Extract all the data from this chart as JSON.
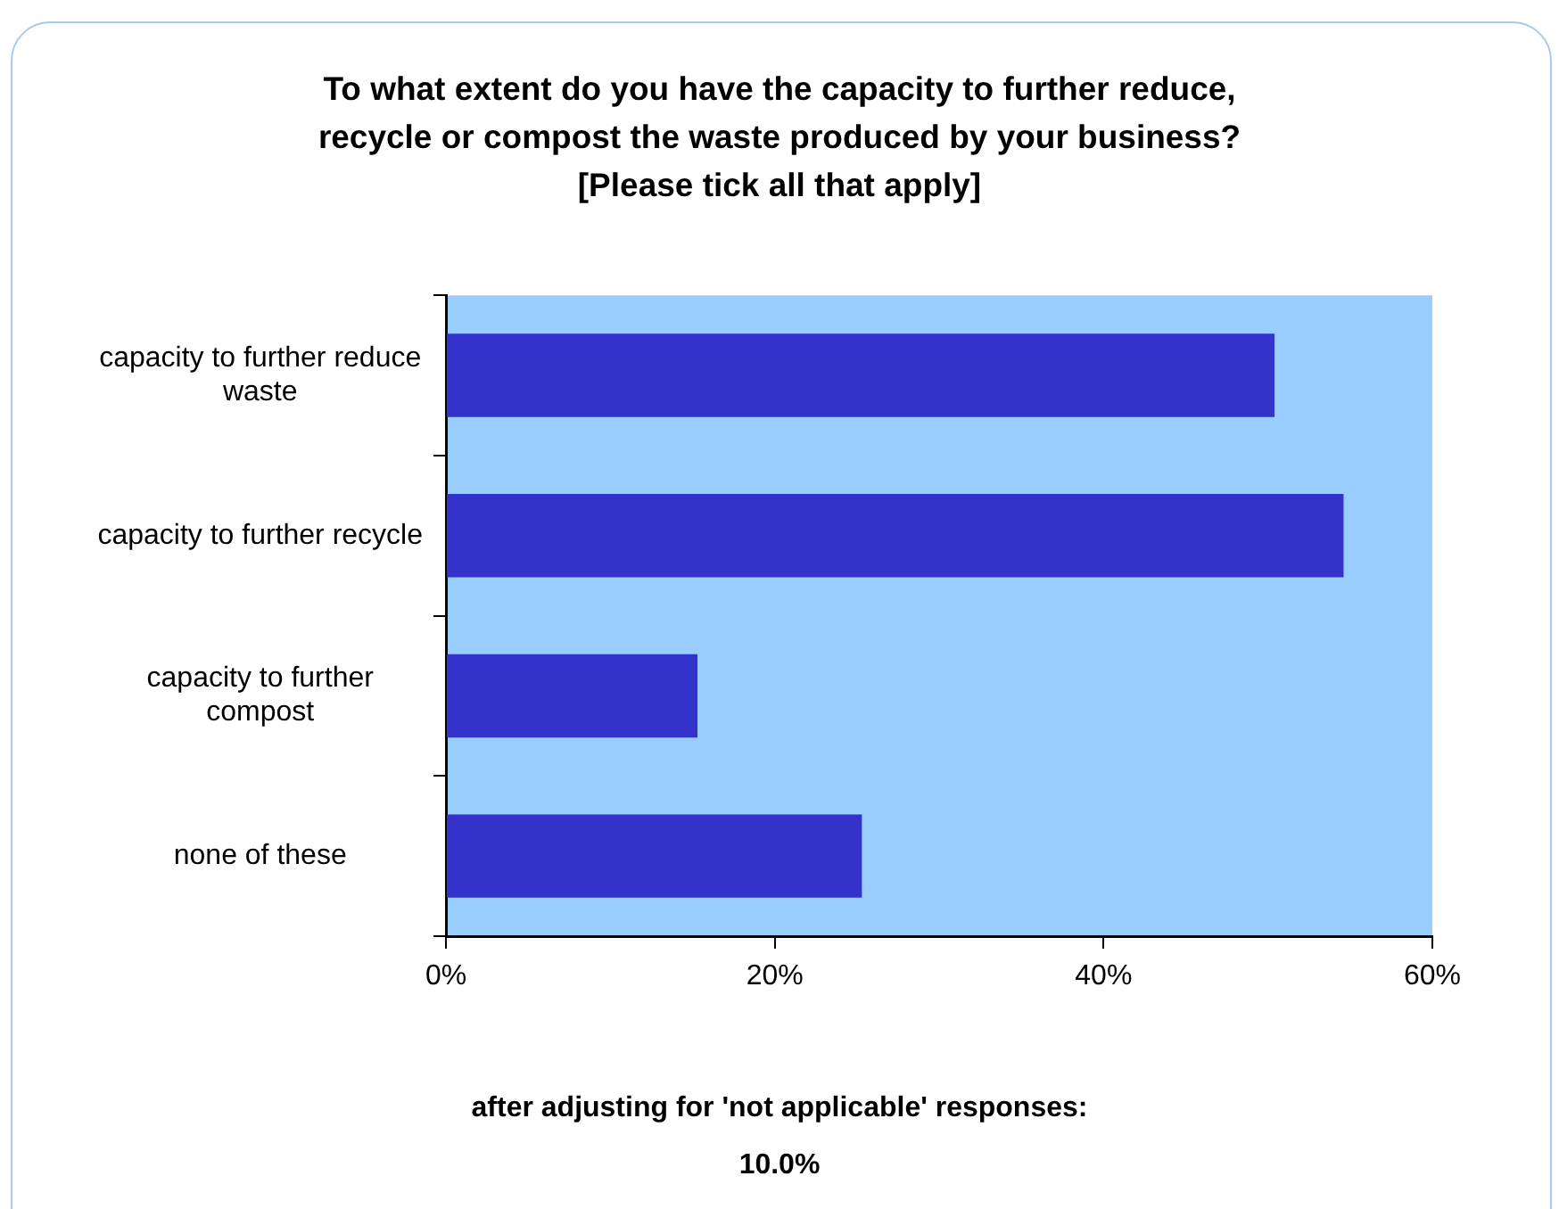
{
  "chart_data": {
    "type": "bar",
    "orientation": "horizontal",
    "title": "To what extent do you have the capacity to further reduce,\nrecycle or compost the waste produced by your business?\n[Please tick all that apply]",
    "categories": [
      "capacity to further reduce waste",
      "capacity to further recycle",
      "capacity to further compost",
      "none of these"
    ],
    "values": [
      50.4,
      54.6,
      15.3,
      25.3
    ],
    "color": "#3333cc",
    "xlim": [
      0,
      60
    ],
    "xticks": [
      {
        "value": 0,
        "label": "0%"
      },
      {
        "value": 20,
        "label": "20%"
      },
      {
        "value": 40,
        "label": "40%"
      },
      {
        "value": 60,
        "label": "60%"
      }
    ],
    "grid": false,
    "legend": false,
    "annotations": [
      "after adjusting for 'not applicable' responses:",
      "10.0%"
    ]
  }
}
